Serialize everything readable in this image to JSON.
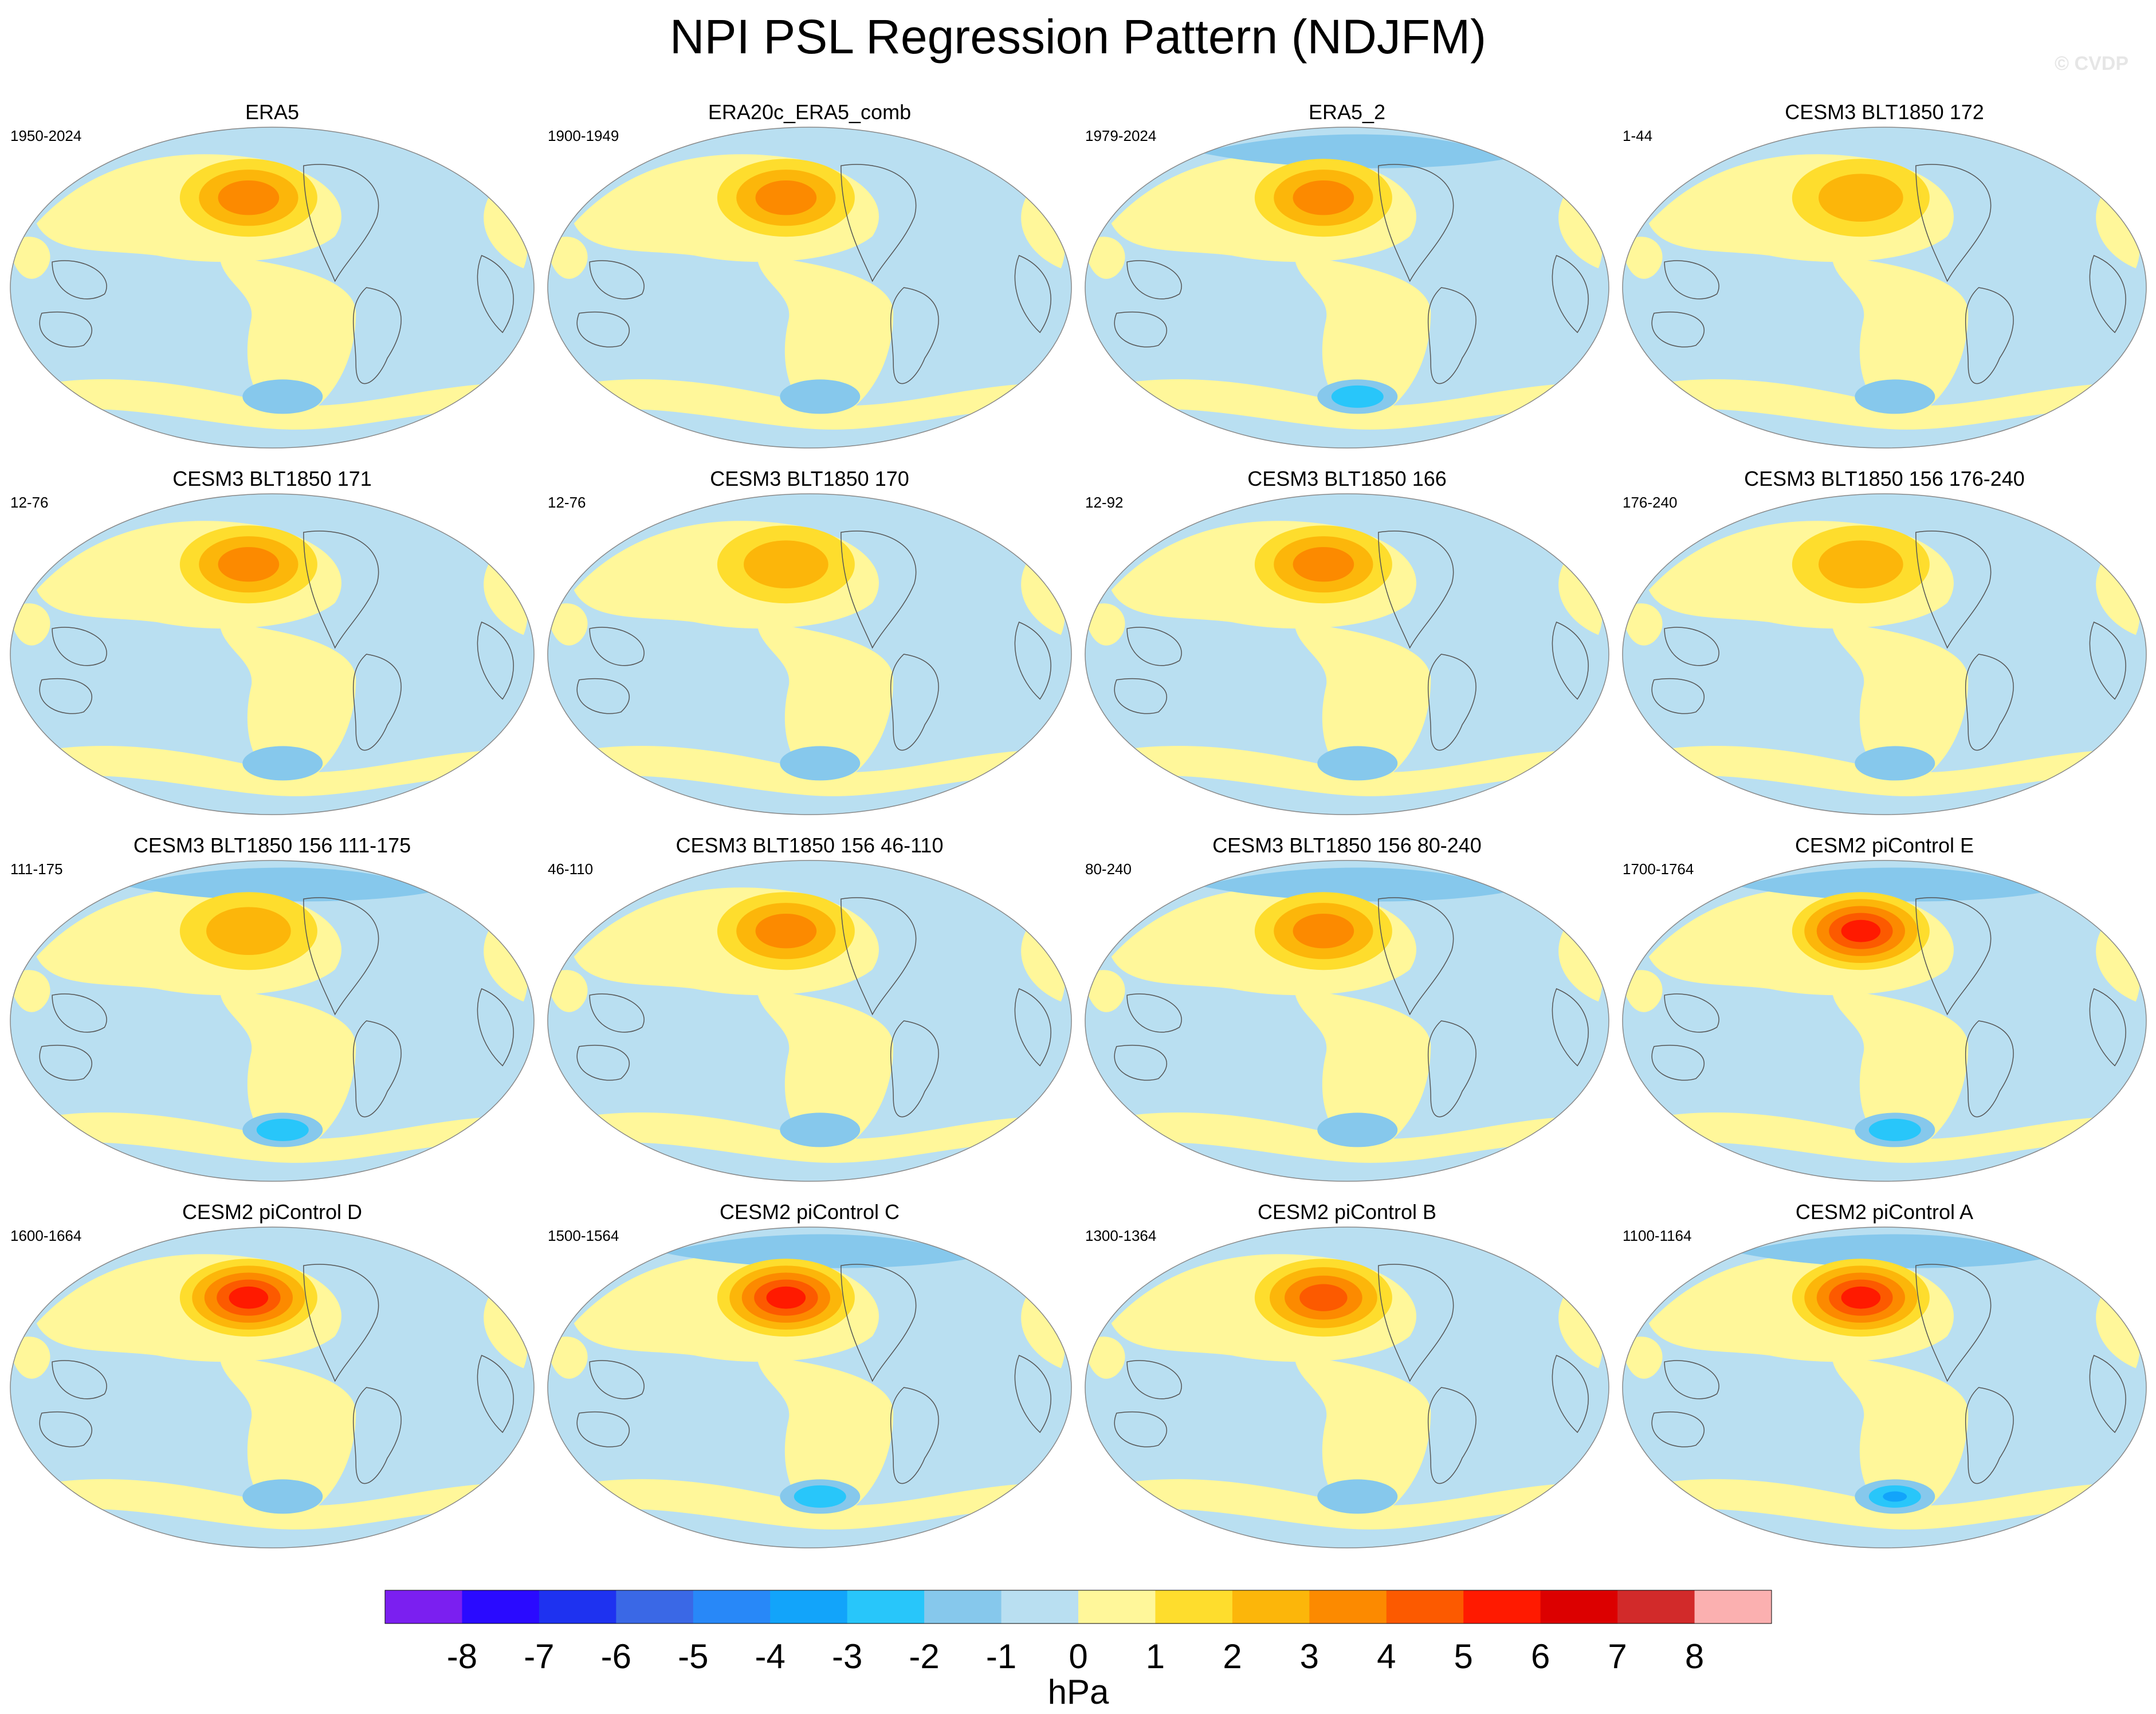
{
  "title": "NPI PSL Regression Pattern (NDJFM)",
  "watermark": "© CVDP",
  "colors": {
    "ocean_fill": "#b9dff1",
    "outline": "#555555"
  },
  "panels": [
    {
      "title": "ERA5",
      "years": "1950-2024",
      "high": 3.4,
      "low": -1.6
    },
    {
      "title": "ERA20c_ERA5_comb",
      "years": "1900-1949",
      "high": 3.2,
      "low": -1.2
    },
    {
      "title": "ERA5_2",
      "years": "1979-2024",
      "high": 3.6,
      "low": -2.2
    },
    {
      "title": "CESM3 BLT1850 172",
      "years": "1-44",
      "high": 3.0,
      "low": -1.4
    },
    {
      "title": "CESM3 BLT1850 171",
      "years": "12-76",
      "high": 3.2,
      "low": -1.5
    },
    {
      "title": "CESM3 BLT1850 170",
      "years": "12-76",
      "high": 3.0,
      "low": -1.3
    },
    {
      "title": "CESM3 BLT1850 166",
      "years": "12-92",
      "high": 3.1,
      "low": -1.6
    },
    {
      "title": "CESM3 BLT1850 156 176-240",
      "years": "176-240",
      "high": 3.0,
      "low": -1.3
    },
    {
      "title": "CESM3 BLT1850 156 111-175",
      "years": "111-175",
      "high": 3.0,
      "low": -2.4
    },
    {
      "title": "CESM3 BLT1850 156 46-110",
      "years": "46-110",
      "high": 3.2,
      "low": -1.8
    },
    {
      "title": "CESM3 BLT1850 156 80-240",
      "years": "80-240",
      "high": 3.1,
      "low": -2.0
    },
    {
      "title": "CESM2 piControl E",
      "years": "1700-1764",
      "high": 5.6,
      "low": -3.0
    },
    {
      "title": "CESM2 piControl D",
      "years": "1600-1664",
      "high": 5.3,
      "low": -1.6
    },
    {
      "title": "CESM2 piControl C",
      "years": "1500-1564",
      "high": 5.4,
      "low": -2.3
    },
    {
      "title": "CESM2 piControl B",
      "years": "1300-1364",
      "high": 4.2,
      "low": -1.7
    },
    {
      "title": "CESM2 piControl A",
      "years": "1100-1164",
      "high": 5.3,
      "low": -3.2
    }
  ],
  "colorbar": {
    "unit": "hPa",
    "ticks": [
      "-8",
      "-7",
      "-6",
      "-5",
      "-4",
      "-3",
      "-2",
      "-1",
      "0",
      "1",
      "2",
      "3",
      "4",
      "5",
      "6",
      "7",
      "8"
    ],
    "colors": [
      "#7b1ff0",
      "#2a0aff",
      "#1e32f0",
      "#3a68e6",
      "#2888f8",
      "#12a4fa",
      "#28c6fa",
      "#86c8ec",
      "#b9dff1",
      "#fff79a",
      "#fedd2d",
      "#fcb60a",
      "#fc8a00",
      "#fc5a00",
      "#ff1a00",
      "#dc0000",
      "#d22a2a",
      "#fbb0b0"
    ]
  }
}
